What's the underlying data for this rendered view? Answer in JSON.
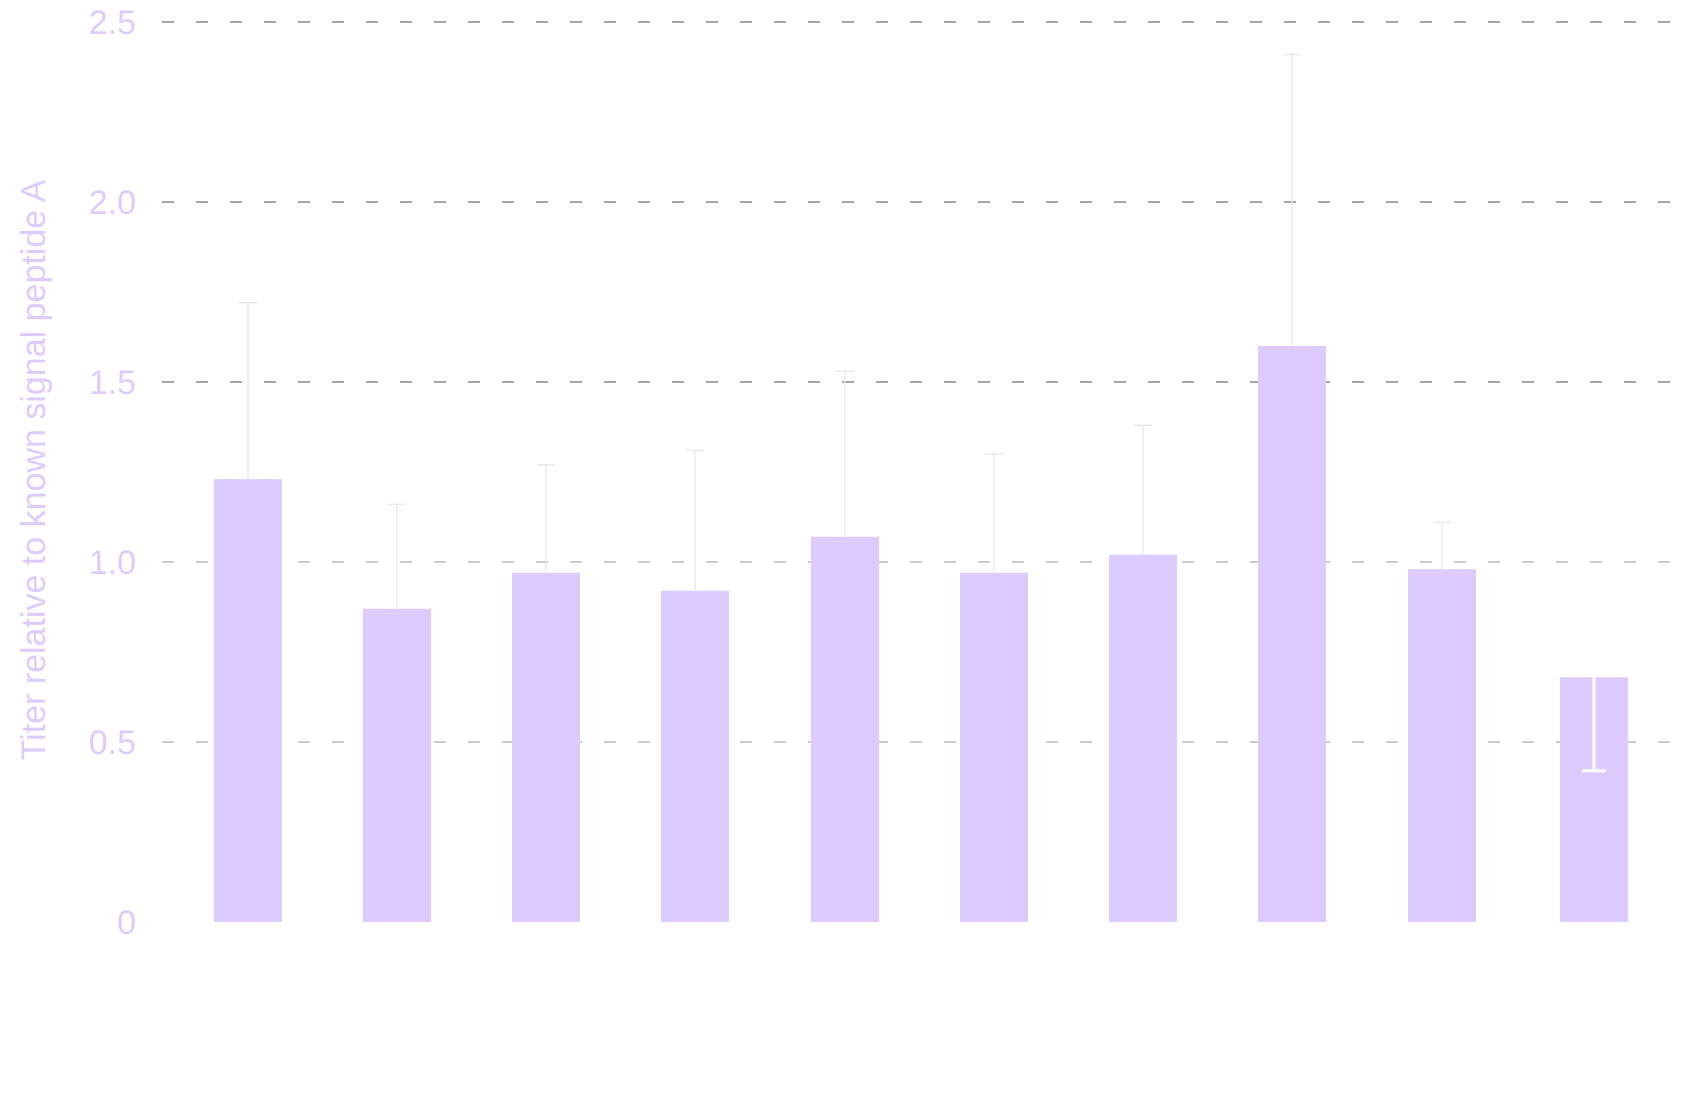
{
  "chart_data": {
    "type": "bar",
    "title": "",
    "xlabel": "",
    "ylabel": "Titer relative to known signal peptide A",
    "ylim": [
      0,
      2.5
    ],
    "y_ticks": [
      "0",
      "0.5",
      "1.0",
      "1.5",
      "2.0",
      "2.5"
    ],
    "y_tick_values": [
      0,
      0.5,
      1.0,
      1.5,
      2.0,
      2.5
    ],
    "grid": "horizontal-dashed",
    "values": [
      1.23,
      0.87,
      0.97,
      0.92,
      1.07,
      0.97,
      1.02,
      1.6,
      0.98,
      0.68
    ],
    "error_upper": [
      1.72,
      1.16,
      1.27,
      1.31,
      1.53,
      1.3,
      1.38,
      2.41,
      1.11,
      0.68
    ],
    "error_lower": [
      1.23,
      0.87,
      0.97,
      0.92,
      1.07,
      0.97,
      1.02,
      1.6,
      0.98,
      0.42
    ]
  },
  "colors": {
    "bar": "#ddcbfd",
    "axis_text": "#ddcbfd",
    "grid_dark": "#888888",
    "grid_light": "#b8b8b8",
    "error_bar": "#ebe7f0",
    "error_bar_inside": "#ffffff"
  }
}
